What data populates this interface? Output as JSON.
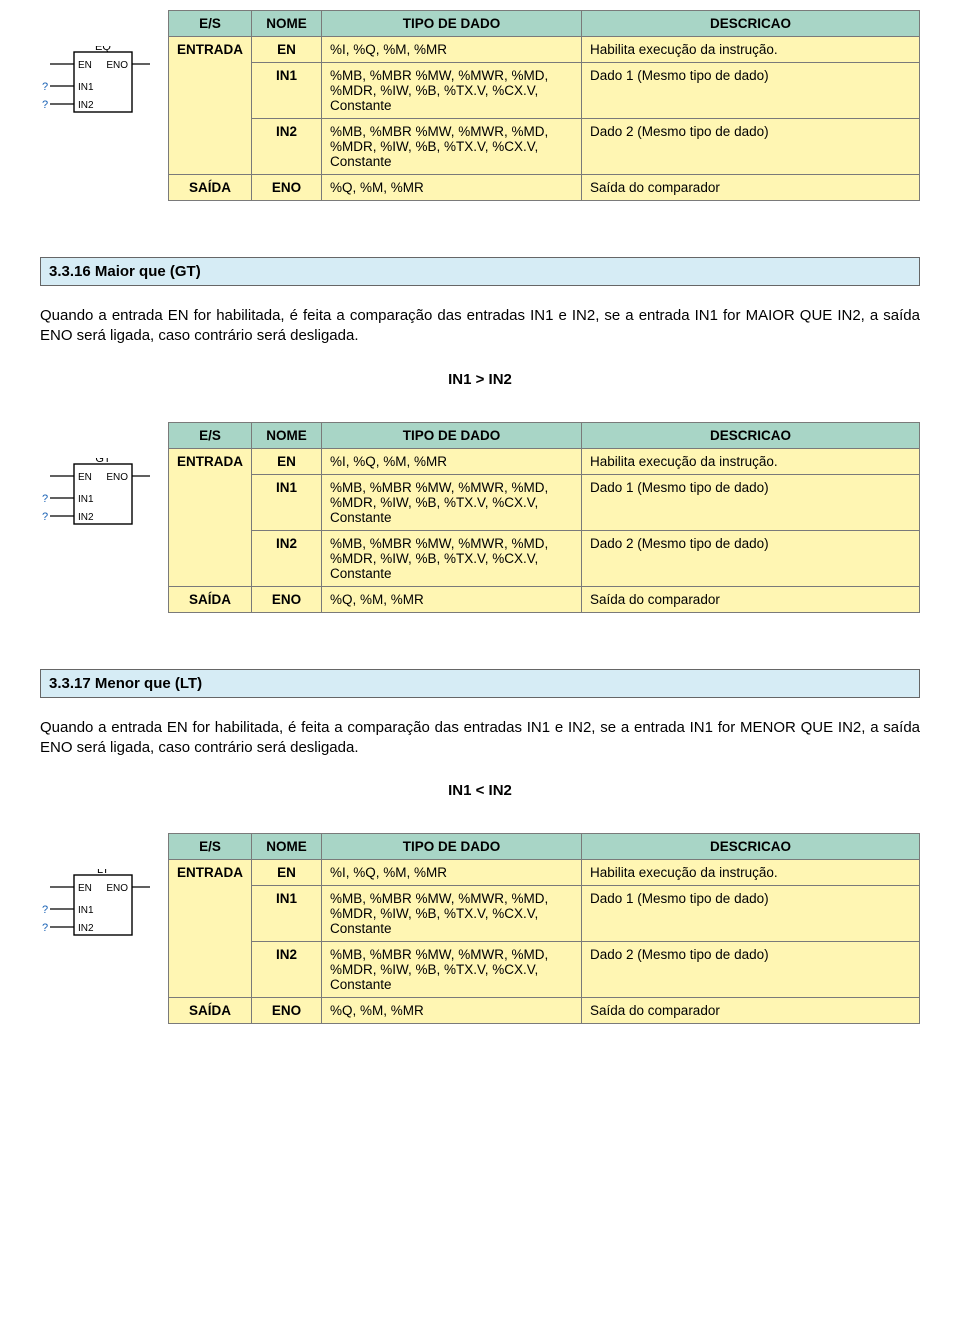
{
  "colors": {
    "header_bg": "#a8d5c6",
    "header_border": "#7a7a7a",
    "row_en_bg": "#fff6b3",
    "row_eno_bg": "#fff6b3",
    "section_bg": "#d6ecf5",
    "diagram_border": "#000000",
    "diagram_bg": "#ffffff"
  },
  "table_header": {
    "es": "E/S",
    "nome": "NOME",
    "tipo": "TIPO DE DADO",
    "desc": "DESCRICAO"
  },
  "col_widths": {
    "es": "76px",
    "nome": "70px",
    "tipo": "260px",
    "desc": "auto"
  },
  "sections": {
    "s1": {
      "diagram_label": "EQ",
      "rows": {
        "en": {
          "es": "",
          "nome": "EN",
          "tipo": "%I, %Q, %M, %MR",
          "desc": "Habilita execução da instrução."
        },
        "in1": {
          "es": "ENTRADA",
          "nome": "IN1",
          "tipo": "%MB, %MBR %MW, %MWR, %MD, %MDR, %IW, %B, %TX.V, %CX.V, Constante",
          "desc": "Dado 1 (Mesmo tipo de dado)"
        },
        "in2": {
          "es": "",
          "nome": "IN2",
          "tipo": "%MB, %MBR %MW, %MWR, %MD, %MDR, %IW, %B, %TX.V, %CX.V, Constante",
          "desc": "Dado 2 (Mesmo tipo de dado)"
        },
        "eno": {
          "es": "SAÍDA",
          "nome": "ENO",
          "tipo": "%Q, %M, %MR",
          "desc": "Saída do comparador"
        }
      }
    },
    "s2": {
      "heading": "3.3.16 Maior que (GT)",
      "para": "Quando a entrada EN for habilitada, é feita a comparação das entradas IN1 e IN2, se a entrada IN1 for MAIOR QUE IN2, a saída ENO será ligada, caso contrário será desligada.",
      "formula": "IN1 > IN2",
      "diagram_label": "GT",
      "rows": {
        "en": {
          "es": "",
          "nome": "EN",
          "tipo": "%I, %Q, %M, %MR",
          "desc": "Habilita execução da instrução."
        },
        "in1": {
          "es": "ENTRADA",
          "nome": "IN1",
          "tipo": "%MB, %MBR %MW, %MWR, %MD, %MDR, %IW, %B, %TX.V, %CX.V, Constante",
          "desc": "Dado 1 (Mesmo tipo de dado)"
        },
        "in2": {
          "es": "",
          "nome": "IN2",
          "tipo": "%MB, %MBR %MW, %MWR, %MD, %MDR, %IW, %B, %TX.V, %CX.V, Constante",
          "desc": "Dado 2 (Mesmo tipo de dado)"
        },
        "eno": {
          "es": "SAÍDA",
          "nome": "ENO",
          "tipo": "%Q, %M, %MR",
          "desc": "Saída do comparador"
        }
      }
    },
    "s3": {
      "heading": "3.3.17 Menor que (LT)",
      "para": "Quando a entrada EN for habilitada, é feita a comparação das entradas IN1 e IN2, se a entrada IN1 for MENOR QUE IN2, a saída ENO será ligada, caso contrário será desligada.",
      "formula": "IN1 < IN2",
      "diagram_label": "LT",
      "rows": {
        "en": {
          "es": "",
          "nome": "EN",
          "tipo": "%I, %Q, %M, %MR",
          "desc": "Habilita execução da instrução."
        },
        "in1": {
          "es": "ENTRADA",
          "nome": "IN1",
          "tipo": "%MB, %MBR %MW, %MWR, %MD, %MDR, %IW, %B, %TX.V, %CX.V, Constante",
          "desc": "Dado 1 (Mesmo tipo de dado)"
        },
        "in2": {
          "es": "",
          "nome": "IN2",
          "tipo": "%MB, %MBR %MW, %MWR, %MD, %MDR, %IW, %B, %TX.V, %CX.V, Constante",
          "desc": "Dado 2 (Mesmo tipo de dado)"
        },
        "eno": {
          "es": "SAÍDA",
          "nome": "ENO",
          "tipo": "%Q, %M, %MR",
          "desc": "Saída do comparador"
        }
      }
    }
  },
  "diagram_ports": {
    "left_top": "EN",
    "right_top": "ENO",
    "left_mid": "IN1",
    "left_bot": "IN2",
    "q_prefix": "?"
  }
}
